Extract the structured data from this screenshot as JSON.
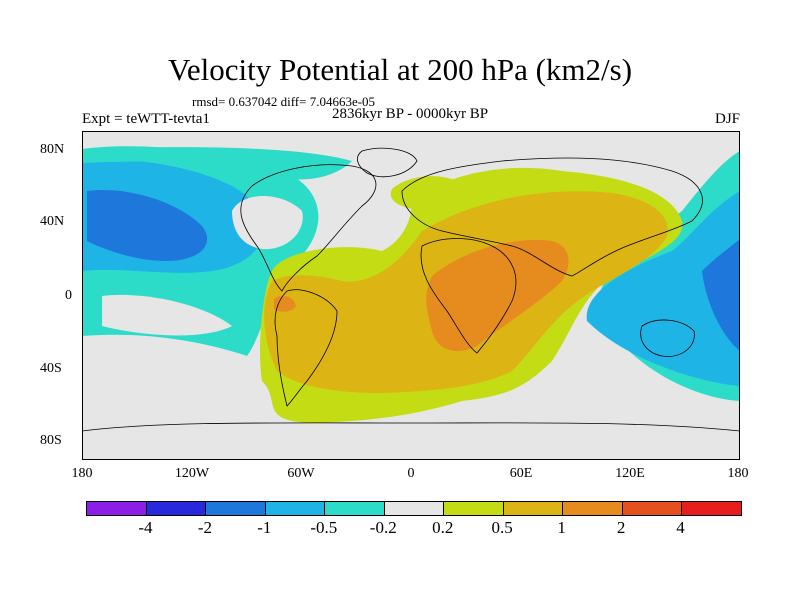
{
  "title": "Velocity Potential at 200 hPa (km2/s)",
  "stats": "rmsd= 0.637042 diff= 7.04663e-05",
  "experiment": "Expt = teWTT-tevta1",
  "period": "2836kyr BP - 0000kyr BP",
  "season": "DJF",
  "map": {
    "lat_ticks": [
      "80N",
      "40N",
      "0",
      "40S",
      "80S"
    ],
    "lon_ticks": [
      "180",
      "120W",
      "60W",
      "0",
      "60E",
      "120E",
      "180"
    ]
  },
  "colorbar": {
    "colors": [
      "#8c1ee6",
      "#2828dc",
      "#1e78dc",
      "#1eb4e6",
      "#2ddcc8",
      "#e6e6e6",
      "#c3dc14",
      "#dcb414",
      "#e68c1e",
      "#e6501e",
      "#e61e1e"
    ],
    "labels": [
      "-4",
      "-2",
      "-1",
      "-0.5",
      "-0.2",
      "0.2",
      "0.5",
      "1",
      "2",
      "4"
    ]
  }
}
